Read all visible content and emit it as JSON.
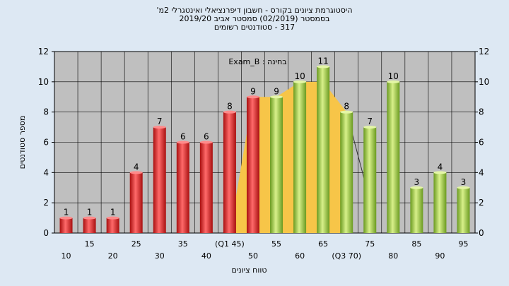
{
  "chart_data": {
    "type": "bar",
    "title_lines": [
      "היסטוגרמת ציונים בקורס - חשבון דיפרנציאלי ואינטגרלי 2מ'",
      "בסמסטר  (02/2019)  סמסטר אביב 2019/20",
      "317 - סטודנטים רשומים"
    ],
    "exam_label": "בחינה : Exam_B",
    "ylabel": "מספר סטודנטים",
    "xlabel": "טווח ציונים",
    "ylim": [
      0,
      12
    ],
    "y_ticks": [
      "0",
      "2",
      "4",
      "6",
      "8",
      "10",
      "12"
    ],
    "categories": [
      "10",
      "15",
      "20",
      "25",
      "30",
      "35",
      "40",
      "(Q1 45)",
      "50",
      "55",
      "60",
      "65",
      "(Q3 70)",
      "75",
      "80",
      "85",
      "90",
      "95"
    ],
    "values": [
      1,
      1,
      1,
      4,
      7,
      6,
      6,
      8,
      9,
      9,
      10,
      11,
      8,
      7,
      10,
      3,
      4,
      3
    ],
    "bar_colors": [
      "#e02828",
      "#e02828",
      "#e02828",
      "#e02828",
      "#e02828",
      "#e02828",
      "#e02828",
      "#e02828",
      "#e02828",
      "#9acc3c",
      "#9acc3c",
      "#9acc3c",
      "#9acc3c",
      "#9acc3c",
      "#9acc3c",
      "#9acc3c",
      "#9acc3c",
      "#9acc3c"
    ],
    "overlay_area": {
      "color": "#f7c548",
      "x": [
        "45",
        "50",
        "55",
        "60",
        "65",
        "70"
      ],
      "values": [
        0,
        9,
        9,
        10,
        10,
        8
      ]
    },
    "grid": true,
    "plot_background": "#bfbfbf"
  }
}
